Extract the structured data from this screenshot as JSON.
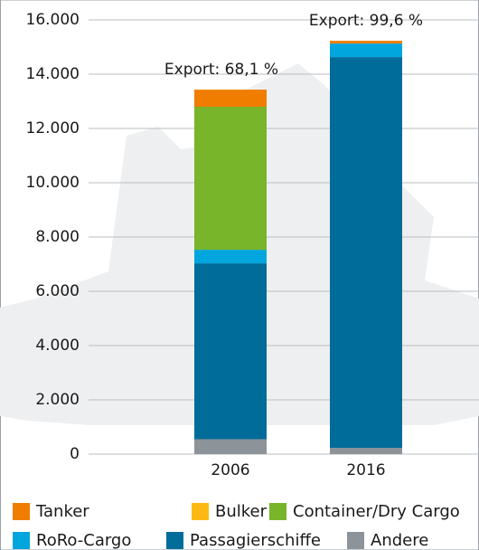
{
  "chart_data": {
    "type": "stacked-bar",
    "categories": [
      "2006",
      "2016"
    ],
    "series": [
      {
        "name": "Andere",
        "color": "#8c9399",
        "values": [
          550,
          230
        ]
      },
      {
        "name": "Passagierschiffe",
        "color": "#006c9a",
        "values": [
          6480,
          14400
        ]
      },
      {
        "name": "RoRo-Cargo",
        "color": "#00a6dd",
        "values": [
          500,
          500
        ]
      },
      {
        "name": "Container/Dry Cargo",
        "color": "#78b52a",
        "values": [
          5270,
          0
        ]
      },
      {
        "name": "Bulker",
        "color": "#fdb913",
        "values": [
          0,
          0
        ]
      },
      {
        "name": "Tanker",
        "color": "#f07d00",
        "values": [
          630,
          100
        ]
      }
    ],
    "annotations": [
      "Export: 68,1 %",
      "Export: 99,6 %"
    ],
    "ylim": [
      0,
      16000
    ],
    "yticks": [
      0,
      {
        "value": 2000,
        "label": "2.000"
      },
      {
        "value": 4000,
        "label": "4.000"
      },
      {
        "value": 6000,
        "label": "6.000"
      },
      {
        "value": 8000,
        "label": "8.000"
      },
      {
        "value": 10000,
        "label": "10.000"
      },
      {
        "value": 12000,
        "label": "12.000"
      },
      {
        "value": 14000,
        "label": "14.000"
      },
      {
        "value": 16000,
        "label": "16.000"
      }
    ],
    "grid": true
  }
}
